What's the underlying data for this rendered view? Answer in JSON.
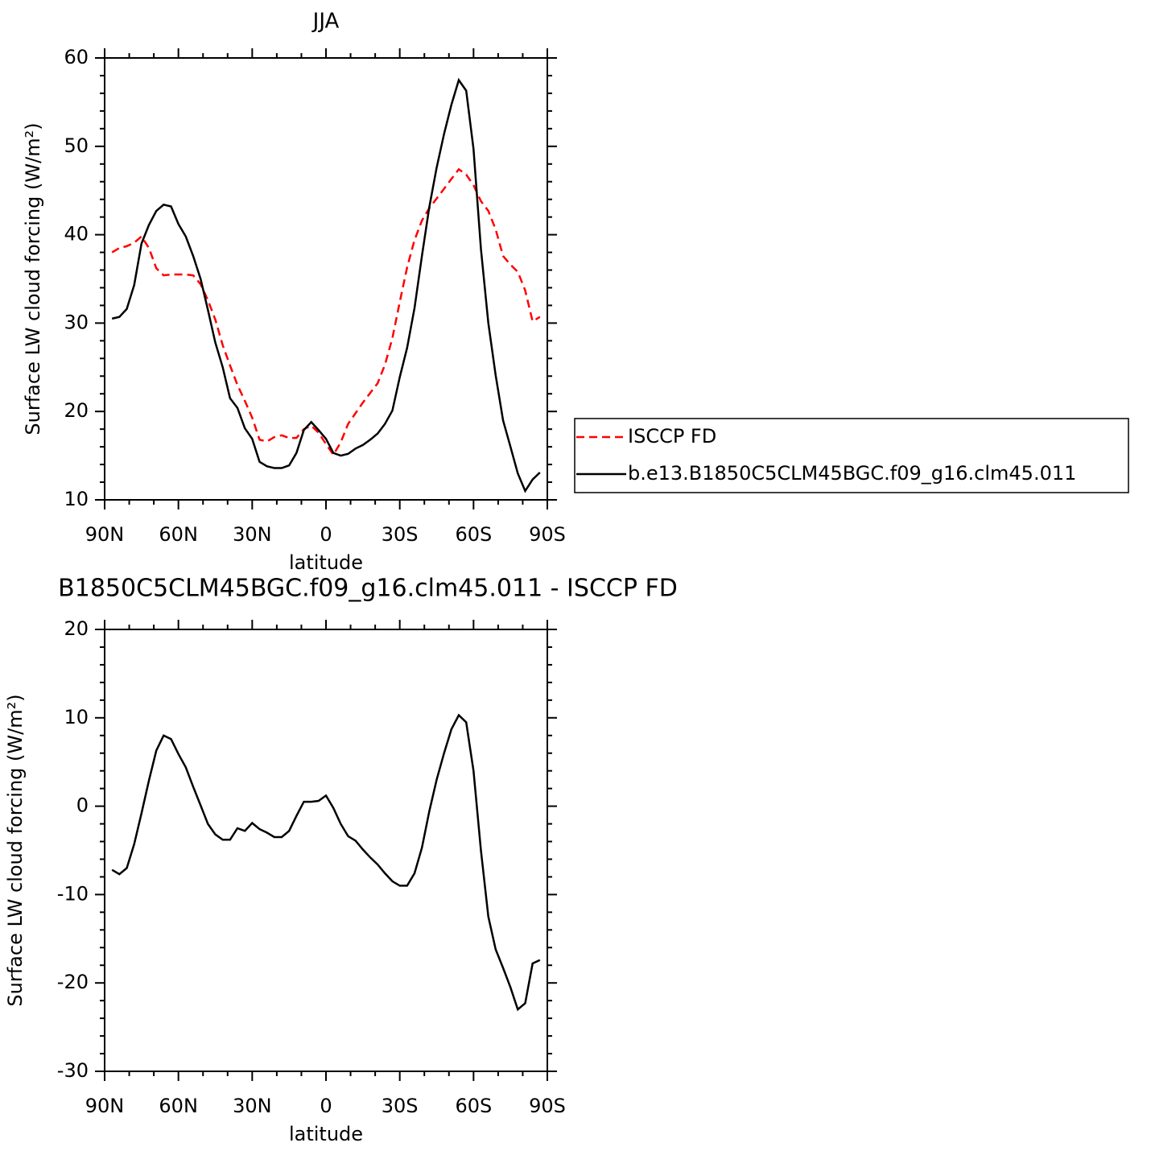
{
  "chart_data": [
    {
      "type": "line",
      "title": "JJA",
      "xlabel": "latitude",
      "ylabel": "Surface LW cloud forcing (W/m²)",
      "xlim": [
        90,
        -90
      ],
      "xticks": [
        {
          "value": 90,
          "label": "90N"
        },
        {
          "value": 60,
          "label": "60N"
        },
        {
          "value": 30,
          "label": "30N"
        },
        0,
        {
          "value": -30,
          "label": "30S"
        },
        {
          "value": -60,
          "label": "60S"
        },
        {
          "value": -90,
          "label": "90S"
        }
      ],
      "xminorticks": [
        80,
        70,
        50,
        40,
        20,
        10,
        -10,
        -20,
        -40,
        -50,
        -70,
        -80
      ],
      "ylim": [
        10,
        60
      ],
      "yticks": [
        10,
        20,
        30,
        40,
        50,
        60
      ],
      "yminorticks": [
        12,
        14,
        16,
        18,
        22,
        24,
        26,
        28,
        32,
        34,
        36,
        38,
        42,
        44,
        46,
        48,
        52,
        54,
        56,
        58
      ],
      "legend": "right",
      "x": [
        87,
        84,
        81,
        78,
        75,
        72,
        69,
        66,
        63,
        60,
        57,
        54,
        51,
        48,
        45,
        42,
        39,
        36,
        33,
        30,
        27,
        24,
        21,
        18,
        15,
        12,
        9,
        6,
        3,
        0,
        -3,
        -6,
        -9,
        -12,
        -15,
        -18,
        -21,
        -24,
        -27,
        -30,
        -33,
        -36,
        -39,
        -42,
        -45,
        -48,
        -51,
        -54,
        -57,
        -60,
        -63,
        -66,
        -69,
        -72,
        -75,
        -78,
        -81,
        -84,
        -87
      ],
      "series": [
        {
          "name": "ISCCP FD",
          "color": "#ff0000",
          "dash": "dashed",
          "values": [
            38.0,
            38.5,
            38.7,
            39.1,
            39.8,
            38.5,
            36.2,
            35.4,
            35.5,
            35.5,
            35.5,
            35.4,
            34.4,
            32.6,
            30.4,
            27.5,
            25.2,
            23.0,
            21.2,
            19.3,
            16.8,
            16.6,
            17.1,
            17.3,
            17.0,
            17.0,
            18.0,
            18.4,
            17.6,
            16.3,
            15.1,
            16.5,
            18.6,
            19.8,
            21.0,
            22.1,
            23.2,
            25.3,
            28.3,
            32.4,
            36.3,
            39.4,
            41.6,
            43.0,
            44.1,
            45.2,
            46.3,
            47.4,
            46.8,
            45.6,
            43.8,
            42.7,
            40.6,
            37.6,
            36.6,
            35.8,
            33.7,
            30.2,
            30.7
          ]
        },
        {
          "name": "b.e13.B1850C5CLM45BGC.f09_g16.clm45.011",
          "color": "#000000",
          "dash": "solid",
          "values": [
            30.5,
            30.7,
            31.6,
            34.3,
            39.0,
            41.1,
            42.7,
            43.4,
            43.2,
            41.2,
            39.8,
            37.6,
            35.0,
            31.5,
            27.8,
            25.0,
            21.5,
            20.4,
            18.1,
            16.9,
            14.3,
            13.8,
            13.6,
            13.6,
            13.9,
            15.3,
            17.9,
            18.8,
            17.9,
            16.9,
            15.3,
            15.0,
            15.2,
            15.8,
            16.2,
            16.8,
            17.5,
            18.6,
            20.1,
            23.9,
            27.2,
            31.7,
            37.6,
            43.1,
            47.6,
            51.4,
            54.7,
            57.5,
            56.3,
            49.7,
            38.4,
            30.0,
            24.1,
            19.0,
            16.0,
            13.0,
            11.0,
            12.3,
            13.1
          ]
        }
      ]
    },
    {
      "type": "line",
      "title": "B1850C5CLM45BGC.f09_g16.clm45.011 - ISCCP FD",
      "xlabel": "latitude",
      "ylabel": "Surface LW cloud forcing (W/m²)",
      "xlim": [
        90,
        -90
      ],
      "xticks": [
        {
          "value": 90,
          "label": "90N"
        },
        {
          "value": 60,
          "label": "60N"
        },
        {
          "value": 30,
          "label": "30N"
        },
        0,
        {
          "value": -30,
          "label": "30S"
        },
        {
          "value": -60,
          "label": "60S"
        },
        {
          "value": -90,
          "label": "90S"
        }
      ],
      "xminorticks": [
        80,
        70,
        50,
        40,
        20,
        10,
        -10,
        -20,
        -40,
        -50,
        -70,
        -80
      ],
      "ylim": [
        -30,
        20
      ],
      "yticks": [
        -30,
        -20,
        -10,
        0,
        10,
        20
      ],
      "yminorticks": [
        -28,
        -26,
        -24,
        -22,
        -18,
        -16,
        -14,
        -12,
        -8,
        -6,
        -4,
        -2,
        2,
        4,
        6,
        8,
        12,
        14,
        16,
        18
      ],
      "x": [
        87,
        84,
        81,
        78,
        75,
        72,
        69,
        66,
        63,
        60,
        57,
        54,
        51,
        48,
        45,
        42,
        39,
        36,
        33,
        30,
        27,
        24,
        21,
        18,
        15,
        12,
        9,
        6,
        3,
        0,
        -3,
        -6,
        -9,
        -12,
        -15,
        -18,
        -21,
        -24,
        -27,
        -30,
        -33,
        -36,
        -39,
        -42,
        -45,
        -48,
        -51,
        -54,
        -57,
        -60,
        -63,
        -66,
        -69,
        -72,
        -75,
        -78,
        -81,
        -84,
        -87
      ],
      "series": [
        {
          "color": "#000000",
          "values": [
            -7.2,
            -7.7,
            -7.0,
            -4.3,
            -0.8,
            2.9,
            6.3,
            8.0,
            7.6,
            5.9,
            4.4,
            2.2,
            0.1,
            -2.0,
            -3.2,
            -3.8,
            -3.8,
            -2.5,
            -2.8,
            -1.9,
            -2.6,
            -3.0,
            -3.5,
            -3.5,
            -2.8,
            -1.1,
            0.5,
            0.5,
            0.6,
            1.2,
            -0.2,
            -2.0,
            -3.4,
            -3.9,
            -4.9,
            -5.8,
            -6.6,
            -7.6,
            -8.5,
            -9.0,
            -9.0,
            -7.6,
            -4.7,
            -0.6,
            3.0,
            6.0,
            8.7,
            10.3,
            9.5,
            4.0,
            -5.0,
            -12.5,
            -16.2,
            -18.3,
            -20.5,
            -23.0,
            -22.3,
            -17.8,
            -17.4
          ]
        }
      ]
    }
  ]
}
